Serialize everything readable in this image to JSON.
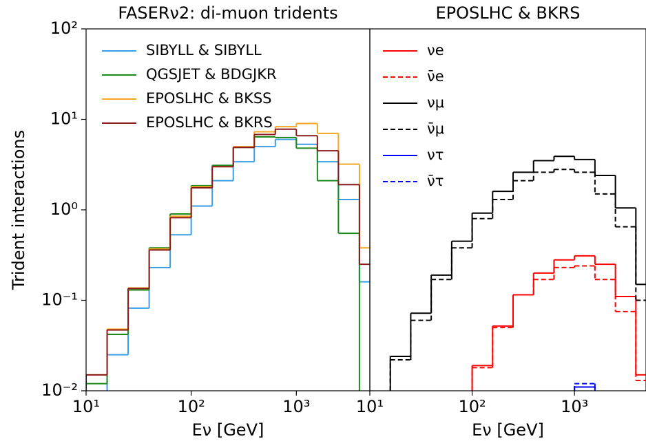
{
  "chart_data": [
    {
      "type": "histogram",
      "title": "FASERν2: di-muon tridents",
      "xlabel": "Eν [GeV]",
      "ylabel": "Trident interactions",
      "xscale": "log",
      "yscale": "log",
      "legend": "upper left",
      "xlim": [
        10,
        5000
      ],
      "ylim": [
        0.01,
        100
      ],
      "xticks": [
        {
          "value": 10,
          "label": "10¹"
        },
        {
          "value": 100,
          "label": "10²"
        },
        {
          "value": 1000,
          "label": "10³"
        }
      ],
      "yticks": [
        {
          "value": 0.01,
          "label": "10⁻²"
        },
        {
          "value": 0.1,
          "label": "10⁻¹"
        },
        {
          "value": 1,
          "label": "10⁰"
        },
        {
          "value": 10,
          "label": "10¹"
        },
        {
          "value": 100,
          "label": "10²"
        }
      ],
      "bins": [
        10,
        15.85,
        25.12,
        39.81,
        63.1,
        100,
        158.5,
        251.2,
        398.1,
        631,
        1000,
        1585,
        2512,
        3981,
        6310
      ],
      "series": [
        {
          "name": "SIBYLL & SIBYLL",
          "color": "#3a9de6",
          "linestyle": "solid",
          "values": [
            null,
            0.025,
            0.082,
            0.23,
            0.53,
            1.1,
            2.1,
            3.4,
            5.0,
            6.0,
            5.3,
            3.4,
            1.3,
            0.16
          ]
        },
        {
          "name": "QGSJET & BDGJKR",
          "color": "#1b8a1b",
          "linestyle": "solid",
          "values": [
            0.012,
            0.042,
            0.13,
            0.38,
            0.9,
            1.85,
            3.1,
            4.9,
            6.4,
            6.3,
            4.8,
            2.1,
            0.55,
            null
          ]
        },
        {
          "name": "EPOSLHC & BKSS",
          "color": "#f5a623",
          "linestyle": "solid",
          "values": [
            0.015,
            0.048,
            0.137,
            0.37,
            0.85,
            1.8,
            3.0,
            5.0,
            7.3,
            8.3,
            9.0,
            7.0,
            3.2,
            0.38
          ]
        },
        {
          "name": "EPOSLHC & BKRS",
          "color": "#8b1a1a",
          "linestyle": "solid",
          "values": [
            0.015,
            0.047,
            0.135,
            0.36,
            0.82,
            1.75,
            3.0,
            4.9,
            6.8,
            7.8,
            6.6,
            4.5,
            1.9,
            0.25
          ]
        }
      ]
    },
    {
      "type": "histogram",
      "title": "EPOSLHC & BKRS",
      "xlabel": "Eν [GeV]",
      "xscale": "log",
      "yscale": "log",
      "legend": "upper left",
      "xlim": [
        10,
        5000
      ],
      "ylim": [
        0.01,
        100
      ],
      "xticks": [
        {
          "value": 10,
          "label": "10¹"
        },
        {
          "value": 100,
          "label": "10²"
        },
        {
          "value": 1000,
          "label": "10³"
        }
      ],
      "bins": [
        10,
        15.85,
        25.12,
        39.81,
        63.1,
        100,
        158.5,
        251.2,
        398.1,
        631,
        1000,
        1585,
        2512,
        3981,
        6310
      ],
      "series": [
        {
          "name": "νe",
          "color": "#ff0000",
          "linestyle": "solid",
          "values": [
            null,
            null,
            null,
            null,
            null,
            0.019,
            0.052,
            0.115,
            0.2,
            0.28,
            0.31,
            0.25,
            0.11,
            0.015
          ]
        },
        {
          "name": "ν̄e",
          "color": "#ff0000",
          "linestyle": "dashed",
          "values": [
            null,
            null,
            null,
            null,
            null,
            0.018,
            0.05,
            0.115,
            0.17,
            0.23,
            0.24,
            0.17,
            0.075,
            0.013
          ]
        },
        {
          "name": "νμ",
          "color": "#000000",
          "linestyle": "solid",
          "values": [
            null,
            0.024,
            0.072,
            0.19,
            0.45,
            0.92,
            1.6,
            2.6,
            3.5,
            3.9,
            3.6,
            2.4,
            1.05,
            0.15
          ]
        },
        {
          "name": "ν̄μ",
          "color": "#000000",
          "linestyle": "dashed",
          "values": [
            null,
            0.022,
            0.06,
            0.17,
            0.38,
            0.8,
            1.3,
            2.1,
            2.6,
            2.8,
            2.6,
            1.5,
            0.65,
            0.1
          ]
        },
        {
          "name": "ντ",
          "color": "#0000ff",
          "linestyle": "solid",
          "values": [
            null,
            null,
            null,
            null,
            null,
            null,
            null,
            null,
            null,
            null,
            0.011,
            null,
            null,
            null
          ]
        },
        {
          "name": "ν̄τ",
          "color": "#0000ff",
          "linestyle": "dashed",
          "values": [
            null,
            null,
            null,
            null,
            null,
            null,
            null,
            null,
            null,
            null,
            0.012,
            null,
            null,
            null
          ]
        }
      ]
    }
  ]
}
